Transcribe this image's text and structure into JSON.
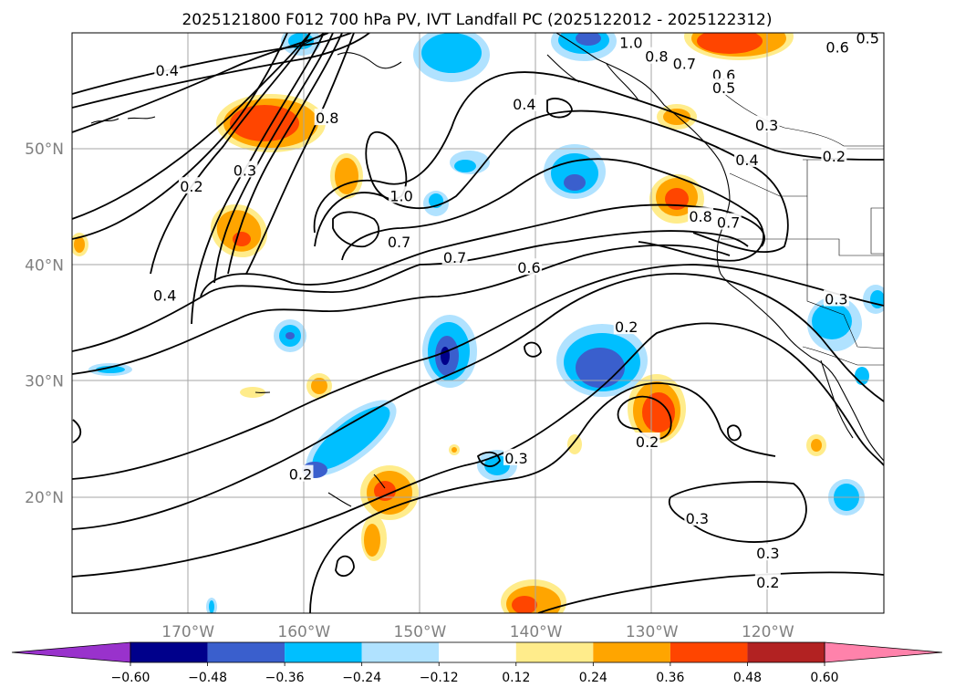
{
  "title": "2025121800 F012 700 hPa PV, IVT Landfall PC (2025122012 - 2025122312)",
  "map": {
    "lon_range": [
      -180,
      -110
    ],
    "lat_range": [
      10,
      60
    ],
    "lat_ticks": [
      {
        "value": 20,
        "label": "20°N"
      },
      {
        "value": 30,
        "label": "30°N"
      },
      {
        "value": 40,
        "label": "40°N"
      },
      {
        "value": 50,
        "label": "50°N"
      }
    ],
    "lon_ticks": [
      {
        "value": -170,
        "label": "170°W"
      },
      {
        "value": -160,
        "label": "160°W"
      },
      {
        "value": -150,
        "label": "150°W"
      },
      {
        "value": -140,
        "label": "140°W"
      },
      {
        "value": -130,
        "label": "130°W"
      },
      {
        "value": -120,
        "label": "120°W"
      }
    ],
    "gridlines": true,
    "coastlines": true
  },
  "colorbar": {
    "extend": "both",
    "orientation": "horizontal",
    "placement": "bottom",
    "bounds": [
      -0.6,
      -0.48,
      -0.36,
      -0.24,
      -0.12,
      0.12,
      0.24,
      0.36,
      0.48,
      0.6
    ],
    "tick_labels": [
      "−0.60",
      "−0.48",
      "−0.36",
      "−0.24",
      "−0.12",
      "0.12",
      "0.24",
      "0.36",
      "0.48",
      "0.60"
    ],
    "colors": [
      "#9932cc",
      "#00008b",
      "#3a5fcd",
      "#00bfff",
      "#b0e2ff",
      "#ffffff",
      "#ffec8b",
      "#ffa500",
      "#ff4500",
      "#b22222",
      "#ff82ab"
    ]
  },
  "contour_labels": [
    {
      "text": "0.4",
      "lon": -171.8,
      "lat": 56.7
    },
    {
      "text": "0.8",
      "lon": -158.0,
      "lat": 52.6
    },
    {
      "text": "0.3",
      "lon": -165.1,
      "lat": 48.1
    },
    {
      "text": "0.2",
      "lon": -169.7,
      "lat": 46.7
    },
    {
      "text": "1.0",
      "lon": -151.6,
      "lat": 45.9
    },
    {
      "text": "0.7",
      "lon": -151.8,
      "lat": 41.9
    },
    {
      "text": "0.4",
      "lon": -172.0,
      "lat": 37.3
    },
    {
      "text": "0.7",
      "lon": -147.0,
      "lat": 40.6
    },
    {
      "text": "0.6",
      "lon": -140.6,
      "lat": 39.7
    },
    {
      "text": "0.4",
      "lon": -141.0,
      "lat": 53.8
    },
    {
      "text": "1.0",
      "lon": -131.8,
      "lat": 59.1
    },
    {
      "text": "0.8",
      "lon": -129.6,
      "lat": 57.9
    },
    {
      "text": "0.7",
      "lon": -127.2,
      "lat": 57.3
    },
    {
      "text": "0.6",
      "lon": -123.8,
      "lat": 56.3
    },
    {
      "text": "0.5",
      "lon": -123.8,
      "lat": 55.2
    },
    {
      "text": "0.3",
      "lon": -120.1,
      "lat": 52.0
    },
    {
      "text": "0.2",
      "lon": -114.3,
      "lat": 49.3
    },
    {
      "text": "0.4",
      "lon": -121.8,
      "lat": 49.0
    },
    {
      "text": "0.8",
      "lon": -125.8,
      "lat": 44.1
    },
    {
      "text": "0.7",
      "lon": -123.4,
      "lat": 43.6
    },
    {
      "text": "0.6",
      "lon": -114.0,
      "lat": 58.7
    },
    {
      "text": "0.5",
      "lon": -111.4,
      "lat": 59.5
    },
    {
      "text": "0.3",
      "lon": -114.1,
      "lat": 37.0
    },
    {
      "text": "0.2",
      "lon": -132.2,
      "lat": 34.6
    },
    {
      "text": "0.2",
      "lon": -130.4,
      "lat": 24.7
    },
    {
      "text": "0.3",
      "lon": -141.7,
      "lat": 23.3
    },
    {
      "text": "0.2",
      "lon": -160.3,
      "lat": 21.9
    },
    {
      "text": "0.3",
      "lon": -126.1,
      "lat": 18.1
    },
    {
      "text": "0.3",
      "lon": -120.0,
      "lat": 15.1
    },
    {
      "text": "0.2",
      "lon": -120.0,
      "lat": 12.6
    }
  ]
}
